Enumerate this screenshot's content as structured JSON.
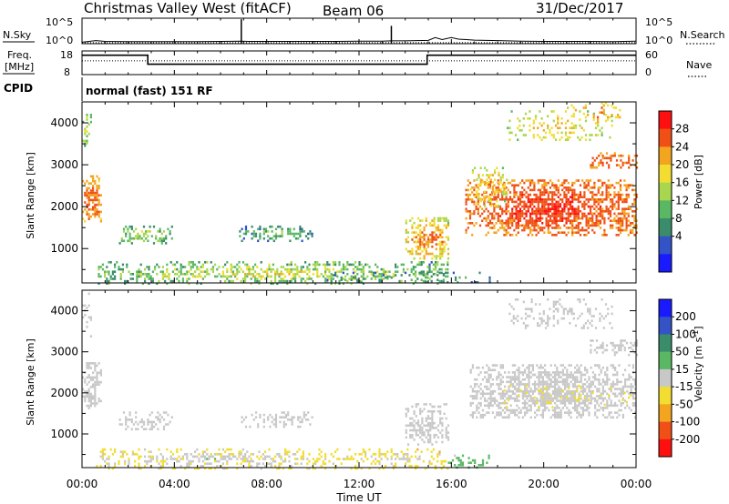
{
  "header": {
    "station": "Christmas Valley West (fitACF)",
    "beam": "Beam 06",
    "date": "31/Dec/2017"
  },
  "chart_data": [
    {
      "type": "line",
      "panel": "noise",
      "left_label": "N.Sky",
      "right_label": "N.Search",
      "left_ticks": [
        "10^5",
        "10^0"
      ],
      "right_ticks": [
        "10^5",
        "10^0"
      ],
      "x_ticks": [
        "00:00",
        "04:00",
        "08:00",
        "12:00",
        "16:00",
        "20:00",
        "00:00"
      ],
      "xlim": [
        0,
        24
      ],
      "ylim": [
        0,
        5
      ],
      "ylog": true,
      "series": [
        {
          "style": "solid",
          "x": [
            0,
            0.6,
            1,
            2,
            3,
            4,
            5,
            6,
            6.9,
            7.2,
            8,
            9,
            10,
            11,
            12,
            13,
            13.4,
            14,
            15,
            15.3,
            15.6,
            16,
            16.3,
            17,
            18,
            19,
            20,
            21,
            22,
            23,
            24
          ],
          "y": [
            0.3,
            0.6,
            0.45,
            0.4,
            0.4,
            0.4,
            0.4,
            0.45,
            0.5,
            0.45,
            0.45,
            0.45,
            0.45,
            0.45,
            0.5,
            0.5,
            0.55,
            0.55,
            0.65,
            1.2,
            0.8,
            1.2,
            0.9,
            0.7,
            0.6,
            0.5,
            0.45,
            0.45,
            0.45,
            0.4,
            0.5
          ]
        },
        {
          "style": "spike",
          "x": [
            6.9,
            13.4
          ],
          "y": [
            4.8,
            3.5
          ]
        },
        {
          "style": "dotted",
          "x": [
            0,
            24
          ],
          "y": [
            0.2,
            0.2
          ]
        }
      ]
    },
    {
      "type": "line",
      "panel": "frequency",
      "left_label_1": "Freq.",
      "left_label_2": "[MHz]",
      "right_label": "Nave",
      "left_ticks": [
        "18",
        "8"
      ],
      "right_ticks": [
        "60",
        "0"
      ],
      "x_ticks": [
        "00:00",
        "04:00",
        "08:00",
        "12:00",
        "16:00",
        "20:00",
        "00:00"
      ],
      "xlim": [
        0,
        24
      ],
      "ylim": [
        8,
        18
      ],
      "series": [
        {
          "style": "solid",
          "x": [
            0,
            2.85,
            2.85,
            14.95,
            14.95,
            24
          ],
          "y": [
            16.2,
            16.2,
            12.4,
            12.4,
            16.2,
            16.2
          ]
        },
        {
          "style": "dotted",
          "x": [
            0,
            24
          ],
          "y": [
            13.8,
            13.8
          ]
        }
      ]
    },
    {
      "type": "table",
      "panel": "cpid",
      "label": "CPID",
      "value": "normal (fast) 151 RF"
    },
    {
      "type": "heatmap",
      "panel": "power",
      "ylabel": "Slant Range [km]",
      "y_ticks": [
        "1000",
        "2000",
        "3000",
        "4000"
      ],
      "x_ticks": [
        "00:00",
        "04:00",
        "08:00",
        "12:00",
        "16:00",
        "20:00",
        "00:00"
      ],
      "xlim": [
        0,
        24
      ],
      "ylim": [
        180,
        4500
      ],
      "colorbar": {
        "label": "Power [dB]",
        "ticks": [
          "28",
          "24",
          "20",
          "16",
          "12",
          "8",
          "4"
        ],
        "range": [
          0,
          32
        ],
        "colors": [
          "#1a1aff",
          "#3353c6",
          "#3a8c6a",
          "#5ab865",
          "#a8d64e",
          "#f2dd30",
          "#f3a51f",
          "#f05016",
          "#ff1010"
        ]
      },
      "regions": [
        {
          "t": [
            0.0,
            0.8
          ],
          "r": [
            1650,
            2750
          ],
          "v": [
            20,
            30
          ],
          "density": 0.8
        },
        {
          "t": [
            0.0,
            0.4
          ],
          "r": [
            3400,
            4500
          ],
          "v": [
            8,
            22
          ],
          "density": 0.3
        },
        {
          "t": [
            1.6,
            3.9
          ],
          "r": [
            1100,
            1550
          ],
          "v": [
            6,
            22
          ],
          "density": 0.55
        },
        {
          "t": [
            6.8,
            10.0
          ],
          "r": [
            1200,
            1550
          ],
          "v": [
            4,
            18
          ],
          "density": 0.55
        },
        {
          "t": [
            0.6,
            15.8
          ],
          "r": [
            180,
            700
          ],
          "v": [
            6,
            24
          ],
          "density": 0.55
        },
        {
          "t": [
            14.0,
            15.9
          ],
          "r": [
            750,
            1750
          ],
          "v": [
            14,
            30
          ],
          "density": 0.7
        },
        {
          "t": [
            10.5,
            17.8
          ],
          "r": [
            180,
            450
          ],
          "v": [
            4,
            16
          ],
          "density": 0.25
        },
        {
          "t": [
            16.6,
            24.0
          ],
          "r": [
            1300,
            2650
          ],
          "v": [
            22,
            31
          ],
          "density": 0.85
        },
        {
          "t": [
            16.8,
            18.4
          ],
          "r": [
            2000,
            2950
          ],
          "v": [
            12,
            28
          ],
          "density": 0.5
        },
        {
          "t": [
            18.4,
            23.0
          ],
          "r": [
            3600,
            4300
          ],
          "v": [
            12,
            26
          ],
          "density": 0.3
        },
        {
          "t": [
            22.0,
            24.0
          ],
          "r": [
            2950,
            3300
          ],
          "v": [
            22,
            30
          ],
          "density": 0.55
        },
        {
          "t": [
            21.0,
            23.5
          ],
          "r": [
            4000,
            4500
          ],
          "v": [
            16,
            28
          ],
          "density": 0.3
        }
      ]
    },
    {
      "type": "heatmap",
      "panel": "velocity",
      "ylabel": "Slant Range [km]",
      "y_ticks": [
        "1000",
        "2000",
        "3000",
        "4000"
      ],
      "x_ticks": [
        "00:00",
        "04:00",
        "08:00",
        "12:00",
        "16:00",
        "20:00",
        "00:00"
      ],
      "xlabel": "Time UT",
      "xlim": [
        0,
        24
      ],
      "ylim": [
        180,
        4500
      ],
      "colorbar": {
        "label": "Velocity [m s^-1]",
        "ticks": [
          "200",
          "100",
          "50",
          "15",
          "-15",
          "-50",
          "-100",
          "-200"
        ],
        "range": [
          -250,
          250
        ],
        "colors": [
          "#ff1010",
          "#f05016",
          "#f3a51f",
          "#f2dd30",
          "#c8c8c8",
          "#5ab865",
          "#3a8c6a",
          "#3353c6",
          "#1a1aff"
        ]
      },
      "regions": [
        {
          "t": [
            0.0,
            0.8
          ],
          "r": [
            1650,
            2750
          ],
          "v": [
            -15,
            15
          ],
          "density": 0.75
        },
        {
          "t": [
            0.0,
            0.4
          ],
          "r": [
            3400,
            4500
          ],
          "v": [
            -15,
            15
          ],
          "density": 0.3
        },
        {
          "t": [
            1.6,
            3.9
          ],
          "r": [
            1100,
            1550
          ],
          "v": [
            -15,
            15
          ],
          "density": 0.55
        },
        {
          "t": [
            6.8,
            10.0
          ],
          "r": [
            1200,
            1550
          ],
          "v": [
            -15,
            15
          ],
          "density": 0.55
        },
        {
          "t": [
            0.6,
            10.5
          ],
          "r": [
            180,
            650
          ],
          "v": [
            -80,
            40
          ],
          "density": 0.5
        },
        {
          "t": [
            10.5,
            15.8
          ],
          "r": [
            180,
            650
          ],
          "v": [
            -90,
            20
          ],
          "density": 0.45
        },
        {
          "t": [
            14.0,
            15.9
          ],
          "r": [
            750,
            1750
          ],
          "v": [
            -15,
            15
          ],
          "density": 0.65
        },
        {
          "t": [
            15.5,
            17.6
          ],
          "r": [
            180,
            500
          ],
          "v": [
            20,
            80
          ],
          "density": 0.35
        },
        {
          "t": [
            16.8,
            24.0
          ],
          "r": [
            1400,
            2700
          ],
          "v": [
            -15,
            15
          ],
          "density": 0.82
        },
        {
          "t": [
            18.4,
            23.0
          ],
          "r": [
            3600,
            4300
          ],
          "v": [
            -15,
            15
          ],
          "density": 0.3
        },
        {
          "t": [
            22.0,
            24.0
          ],
          "r": [
            2950,
            3300
          ],
          "v": [
            -15,
            15
          ],
          "density": 0.55
        },
        {
          "t": [
            18.0,
            24.0
          ],
          "r": [
            1650,
            2200
          ],
          "v": [
            -60,
            -30
          ],
          "density": 0.12
        }
      ]
    }
  ]
}
